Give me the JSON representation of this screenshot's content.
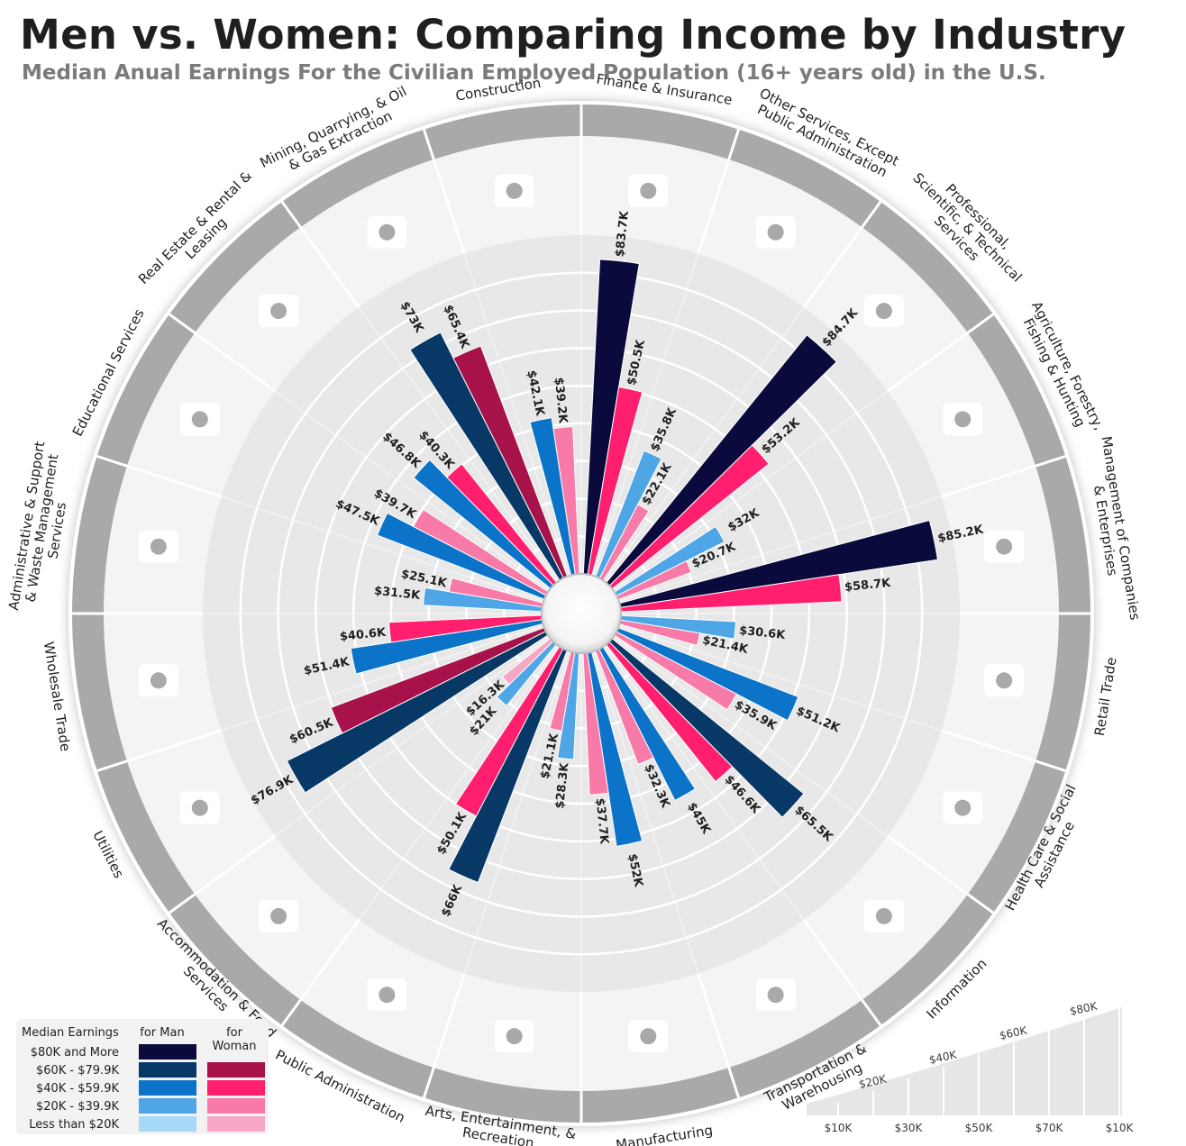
{
  "title": "Men vs. Women: Comparing Income by Industry",
  "subtitle": "Median Anual Earnings For the Civilian Employed Population (16+ years old) in the U.S.",
  "legend": {
    "heading": "Median Earnings",
    "men_label": "for Man",
    "women_label": "for Woman",
    "bins": [
      "$80K and More",
      "$60K - $79.9K",
      "$40K - $59.9K",
      "$20K - $39.9K",
      "Less than $20K"
    ],
    "men_colors": [
      "#0a0a3c",
      "#073866",
      "#0b74c8",
      "#4ea6e6",
      "#a6d9f7"
    ],
    "women_colors": [
      "",
      "#a8124a",
      "#ff1f6e",
      "#f77aa8",
      "#f7a6c6"
    ]
  },
  "scale": {
    "ticks": [
      "$10K",
      "$20K",
      "$30K",
      "$40K",
      "$50K",
      "$60K",
      "$70K",
      "$80K",
      "$10K"
    ]
  },
  "chart_data": {
    "type": "radial-bar",
    "unit": "$K",
    "categories": [
      {
        "name": "Finance & Insurance",
        "icon": "finance-icon",
        "men": 83.7,
        "women": 50.5,
        "men_label": "$83.7K",
        "women_label": "$50.5K"
      },
      {
        "name": "Other Services, Except Public Administration",
        "icon": "other-services-icon",
        "men": 35.8,
        "women": 22.1,
        "men_label": "$35.8K",
        "women_label": "$22.1K"
      },
      {
        "name": "Professional, Scientific, & Technical Services",
        "icon": "professional-icon",
        "men": 84.7,
        "women": 53.2,
        "men_label": "$84.7K",
        "women_label": "$53.2K"
      },
      {
        "name": "Agriculture, Forestry, Fishing & Hunting",
        "icon": "agriculture-icon",
        "men": 32,
        "women": 20.7,
        "men_label": "$32K",
        "women_label": "$20.7K"
      },
      {
        "name": "Management of Companies & Enterprises",
        "icon": "management-icon",
        "men": 85.2,
        "women": 58.7,
        "men_label": "$85.2K",
        "women_label": "$58.7K"
      },
      {
        "name": "Retail Trade",
        "icon": "retail-icon",
        "men": 30.6,
        "women": 21.4,
        "men_label": "$30.6K",
        "women_label": "$21.4K"
      },
      {
        "name": "Health Care & Social Assistance",
        "icon": "health-icon",
        "men": 51.2,
        "women": 35.9,
        "men_label": "$51.2K",
        "women_label": "$35.9K"
      },
      {
        "name": "Information",
        "icon": "information-icon",
        "men": 65.5,
        "women": 46.6,
        "men_label": "$65.5K",
        "women_label": "$46.6K"
      },
      {
        "name": "Transportation & Warehousing",
        "icon": "transportation-icon",
        "men": 45,
        "women": 32.3,
        "men_label": "$45K",
        "women_label": "$32.3K"
      },
      {
        "name": "Manufacturing",
        "icon": "manufacturing-icon",
        "men": 52,
        "women": 37.7,
        "men_label": "$52K",
        "women_label": "$37.7K"
      },
      {
        "name": "Arts, Entertainment, & Recreation",
        "icon": "arts-icon",
        "men": 28.3,
        "women": 21.1,
        "men_label": "$28.3K",
        "women_label": "$21.1K"
      },
      {
        "name": "Public Administration",
        "icon": "public-admin-icon",
        "men": 66,
        "women": 50.1,
        "men_label": "$66K",
        "women_label": "$50.1K"
      },
      {
        "name": "Accommodation & Food Services",
        "icon": "accommodation-icon",
        "men": 21,
        "women": 16.3,
        "men_label": "$21K",
        "women_label": "$16.3K"
      },
      {
        "name": "Utilities",
        "icon": "utilities-icon",
        "men": 76.9,
        "women": 60.5,
        "men_label": "$76.9K",
        "women_label": "$60.5K"
      },
      {
        "name": "Wholesale Trade",
        "icon": "wholesale-icon",
        "men": 51.4,
        "women": 40.6,
        "men_label": "$51.4K",
        "women_label": "$40.6K"
      },
      {
        "name": "Administrative & Support & Waste Management Services",
        "icon": "admin-support-icon",
        "men": 31.5,
        "women": 25.1,
        "men_label": "$31.5K",
        "women_label": "$25.1K"
      },
      {
        "name": "Educational Services",
        "icon": "education-icon",
        "men": 47.5,
        "women": 39.7,
        "men_label": "$47.5K",
        "women_label": "$39.7K"
      },
      {
        "name": "Real Estate & Rental & Leasing",
        "icon": "real-estate-icon",
        "men": 46.8,
        "women": 40.3,
        "men_label": "$46.8K",
        "women_label": "$40.3K"
      },
      {
        "name": "Mining, Quarrying, & Oil & Gas Extraction",
        "icon": "mining-icon",
        "men": 73,
        "women": 65.4,
        "men_label": "$73K",
        "women_label": "$65.4K"
      },
      {
        "name": "Construction",
        "icon": "construction-icon",
        "men": 42.1,
        "women": 39.2,
        "men_label": "$42.1K",
        "women_label": "$39.2K"
      }
    ]
  }
}
